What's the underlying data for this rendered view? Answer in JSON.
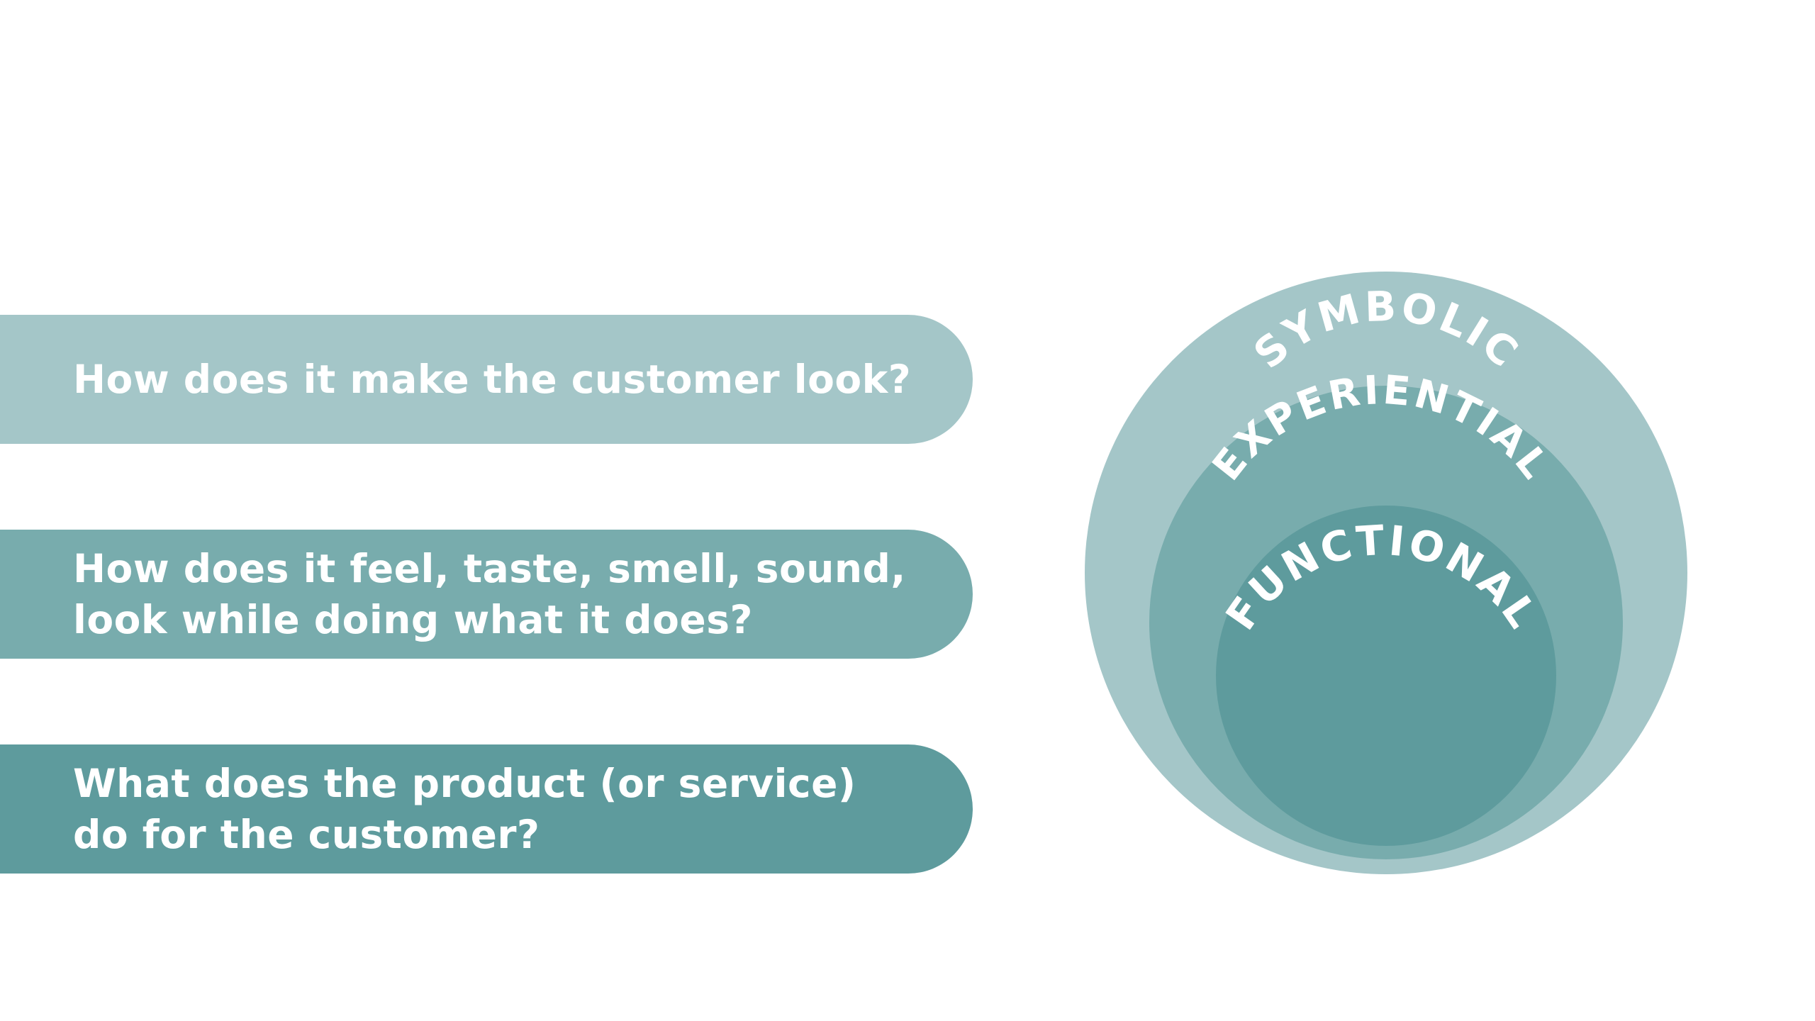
{
  "colors": {
    "background": "#ffffff",
    "symbolic": "#a4c6c8",
    "experiential": "#78acad",
    "functional": "#5e9b9d",
    "text": "#ffffff"
  },
  "questions": [
    {
      "id": "symbolic",
      "lines": [
        "How does it make the customer look?"
      ]
    },
    {
      "id": "experiential",
      "lines": [
        "How does it feel, taste, smell, sound,",
        "look while doing what it does?"
      ]
    },
    {
      "id": "functional",
      "lines": [
        "What does the product (or service)",
        "do for the customer?"
      ]
    }
  ],
  "rings": {
    "outer": "SYMBOLIC",
    "middle": "EXPERIENTIAL",
    "inner": "FUNCTIONAL"
  }
}
